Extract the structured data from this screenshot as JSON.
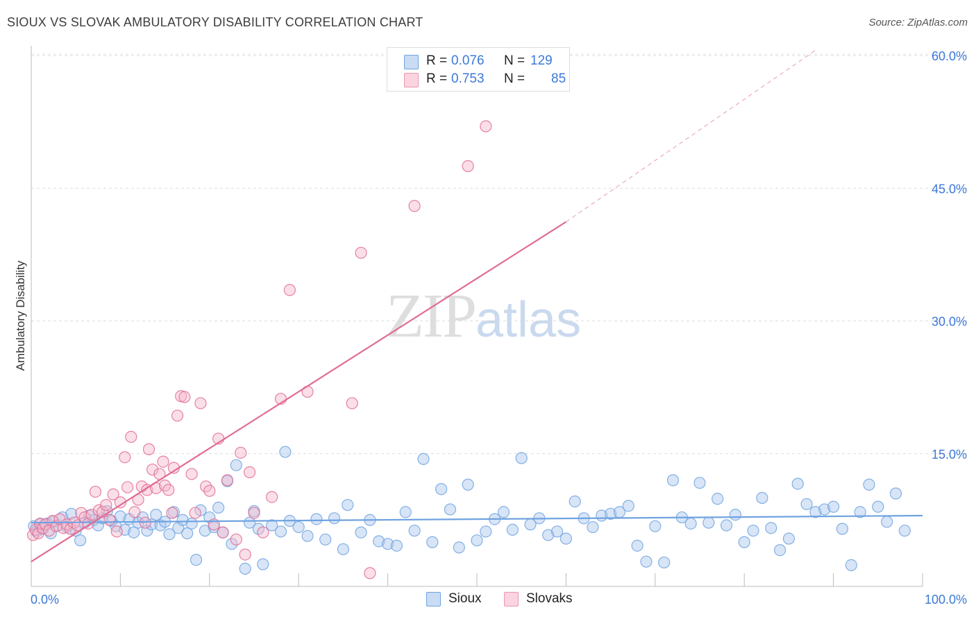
{
  "title": "SIOUX VS SLOVAK AMBULATORY DISABILITY CORRELATION CHART",
  "source": "Source: ZipAtlas.com",
  "watermark": {
    "zip": "ZIP",
    "atlas": "atlas"
  },
  "legend_stats": [
    {
      "r_label": "R =",
      "r_value": "0.076",
      "n_label": "N =",
      "n_value": "129",
      "color": "#a8c6ee"
    },
    {
      "r_label": "R =",
      "r_value": "0.753",
      "n_label": "N =",
      "n_value": "85",
      "color": "#f7b9cb"
    }
  ],
  "bottom_legend": [
    {
      "label": "Sioux",
      "color": "#a8c6ee"
    },
    {
      "label": "Slovaks",
      "color": "#f7b9cb"
    }
  ],
  "chart_data": {
    "type": "scatter",
    "title": "SIOUX VS SLOVAK AMBULATORY DISABILITY CORRELATION CHART",
    "xlabel": "",
    "ylabel": "Ambulatory Disability",
    "xlim": [
      0,
      100
    ],
    "ylim": [
      0,
      62
    ],
    "x_tick_labels": [
      "0.0%",
      "100.0%"
    ],
    "y_ticks": [
      15,
      30,
      45,
      60
    ],
    "y_tick_labels": [
      "15.0%",
      "30.0%",
      "45.0%",
      "60.0%"
    ],
    "grid": true,
    "legend_position": "top-center",
    "series": [
      {
        "name": "Sioux",
        "color": "#6fa3e0",
        "fill": "#a8c6ee",
        "trend": {
          "x": [
            0,
            100
          ],
          "y": [
            7.2,
            8.0
          ]
        },
        "points": [
          [
            0.3,
            6.8
          ],
          [
            0.6,
            6.2
          ],
          [
            1,
            7
          ],
          [
            1.3,
            6.5
          ],
          [
            1.8,
            7.1
          ],
          [
            2.2,
            6
          ],
          [
            2.5,
            7.3
          ],
          [
            3,
            6.9
          ],
          [
            3.5,
            7.8
          ],
          [
            4,
            6.7
          ],
          [
            4.5,
            8.2
          ],
          [
            5,
            6.3
          ],
          [
            5.5,
            5.2
          ],
          [
            6,
            7.2
          ],
          [
            6.5,
            8
          ],
          [
            7,
            7.5
          ],
          [
            7.5,
            6.9
          ],
          [
            8,
            7.7
          ],
          [
            8.5,
            8.5
          ],
          [
            9,
            7.4
          ],
          [
            9.5,
            6.8
          ],
          [
            10,
            7.9
          ],
          [
            10.5,
            6.4
          ],
          [
            11,
            7.6
          ],
          [
            11.5,
            6.1
          ],
          [
            12,
            7.2
          ],
          [
            12.5,
            7.8
          ],
          [
            13,
            6.3
          ],
          [
            13.5,
            7
          ],
          [
            14,
            8.1
          ],
          [
            14.5,
            6.9
          ],
          [
            15,
            7.3
          ],
          [
            15.5,
            5.9
          ],
          [
            16,
            8.4
          ],
          [
            16.5,
            6.6
          ],
          [
            17,
            7.5
          ],
          [
            17.5,
            6
          ],
          [
            18,
            7.1
          ],
          [
            18.5,
            3
          ],
          [
            19,
            8.6
          ],
          [
            19.5,
            6.3
          ],
          [
            20,
            7.8
          ],
          [
            20.5,
            6.7
          ],
          [
            21,
            8.9
          ],
          [
            21.5,
            6.1
          ],
          [
            22,
            11.9
          ],
          [
            22.5,
            4.8
          ],
          [
            23,
            13.7
          ],
          [
            24,
            2
          ],
          [
            24.5,
            7.2
          ],
          [
            25,
            8.5
          ],
          [
            25.5,
            6.5
          ],
          [
            26,
            2.5
          ],
          [
            27,
            6.9
          ],
          [
            28,
            6.2
          ],
          [
            28.5,
            15.2
          ],
          [
            29,
            7.4
          ],
          [
            30,
            6.7
          ],
          [
            31,
            5.7
          ],
          [
            32,
            7.6
          ],
          [
            33,
            5.3
          ],
          [
            34,
            7.7
          ],
          [
            35,
            4.2
          ],
          [
            35.5,
            9.2
          ],
          [
            37,
            6.1
          ],
          [
            38,
            7.5
          ],
          [
            39,
            5.1
          ],
          [
            40,
            4.8
          ],
          [
            41,
            4.6
          ],
          [
            42,
            8.4
          ],
          [
            43,
            6.3
          ],
          [
            44,
            14.4
          ],
          [
            45,
            5
          ],
          [
            46,
            11
          ],
          [
            47,
            8.7
          ],
          [
            48,
            4.4
          ],
          [
            49,
            11.5
          ],
          [
            50,
            5.2
          ],
          [
            51,
            6.2
          ],
          [
            52,
            7.6
          ],
          [
            53,
            8.4
          ],
          [
            54,
            6.4
          ],
          [
            55,
            14.5
          ],
          [
            56,
            7
          ],
          [
            57,
            7.7
          ],
          [
            58,
            5.8
          ],
          [
            59,
            6.2
          ],
          [
            60,
            5.4
          ],
          [
            61,
            9.6
          ],
          [
            62,
            7.7
          ],
          [
            63,
            6.7
          ],
          [
            64,
            8
          ],
          [
            65,
            8.2
          ],
          [
            66,
            8.4
          ],
          [
            67,
            9.1
          ],
          [
            68,
            4.6
          ],
          [
            69,
            2.8
          ],
          [
            70,
            6.8
          ],
          [
            71,
            2.7
          ],
          [
            72,
            12
          ],
          [
            73,
            7.8
          ],
          [
            74,
            7.1
          ],
          [
            75,
            11.7
          ],
          [
            76,
            7.2
          ],
          [
            77,
            9.9
          ],
          [
            78,
            6.9
          ],
          [
            79,
            8.1
          ],
          [
            80,
            5
          ],
          [
            81,
            6.3
          ],
          [
            82,
            10
          ],
          [
            83,
            6.6
          ],
          [
            84,
            4.1
          ],
          [
            85,
            5.4
          ],
          [
            86,
            11.6
          ],
          [
            87,
            9.3
          ],
          [
            88,
            8.4
          ],
          [
            89,
            8.7
          ],
          [
            90,
            9
          ],
          [
            91,
            6.5
          ],
          [
            92,
            2.4
          ],
          [
            93,
            8.4
          ],
          [
            94,
            11.5
          ],
          [
            95,
            9
          ],
          [
            96,
            7.3
          ],
          [
            97,
            10.5
          ],
          [
            98,
            6.3
          ]
        ]
      },
      {
        "name": "Slovaks",
        "color": "#e06c93",
        "fill": "#f7b9cb",
        "trend": {
          "x": [
            0,
            60
          ],
          "y": [
            2.8,
            41.2
          ]
        },
        "trend_dashed": {
          "x": [
            60,
            88
          ],
          "y": [
            41.2,
            60.6
          ]
        },
        "points": [
          [
            0.2,
            5.8
          ],
          [
            0.5,
            6.4
          ],
          [
            0.8,
            6
          ],
          [
            1,
            7.1
          ],
          [
            1.3,
            6.6
          ],
          [
            1.6,
            7
          ],
          [
            2,
            6.3
          ],
          [
            2.4,
            7.4
          ],
          [
            2.8,
            6.8
          ],
          [
            3.2,
            7.6
          ],
          [
            3.6,
            6.6
          ],
          [
            4,
            7
          ],
          [
            4.4,
            6.5
          ],
          [
            4.8,
            7.2
          ],
          [
            5.2,
            6.9
          ],
          [
            5.6,
            8.3
          ],
          [
            6,
            7.8
          ],
          [
            6.4,
            7.1
          ],
          [
            6.8,
            8.1
          ],
          [
            7.2,
            10.7
          ],
          [
            7.6,
            8.6
          ],
          [
            8,
            8.4
          ],
          [
            8.4,
            9.2
          ],
          [
            8.8,
            7.5
          ],
          [
            9.2,
            10.4
          ],
          [
            9.6,
            6.2
          ],
          [
            10,
            9.5
          ],
          [
            10.5,
            14.6
          ],
          [
            10.8,
            11.2
          ],
          [
            11.2,
            16.9
          ],
          [
            11.6,
            8.4
          ],
          [
            12,
            9.8
          ],
          [
            12.4,
            11.3
          ],
          [
            12.8,
            7.2
          ],
          [
            13,
            10.9
          ],
          [
            13.2,
            15.5
          ],
          [
            13.6,
            13.2
          ],
          [
            14,
            11.1
          ],
          [
            14.4,
            12.7
          ],
          [
            14.8,
            14.1
          ],
          [
            15,
            11.4
          ],
          [
            15.4,
            10.9
          ],
          [
            15.8,
            8.3
          ],
          [
            16,
            13.4
          ],
          [
            16.4,
            19.3
          ],
          [
            16.8,
            21.5
          ],
          [
            17.2,
            21.4
          ],
          [
            18,
            12.7
          ],
          [
            18.4,
            8.3
          ],
          [
            19,
            20.7
          ],
          [
            19.6,
            11.3
          ],
          [
            20,
            10.8
          ],
          [
            20.5,
            7
          ],
          [
            21,
            16.7
          ],
          [
            21.5,
            6.1
          ],
          [
            22,
            12
          ],
          [
            23,
            5.3
          ],
          [
            23.5,
            15.1
          ],
          [
            24,
            3.6
          ],
          [
            24.5,
            12.9
          ],
          [
            25,
            8.3
          ],
          [
            26,
            6.1
          ],
          [
            27,
            10.1
          ],
          [
            28,
            21.2
          ],
          [
            29,
            33.5
          ],
          [
            31,
            22
          ],
          [
            36,
            20.7
          ],
          [
            37,
            37.7
          ],
          [
            38,
            1.5
          ],
          [
            43,
            43
          ],
          [
            49,
            47.5
          ],
          [
            51,
            52
          ]
        ]
      }
    ]
  }
}
